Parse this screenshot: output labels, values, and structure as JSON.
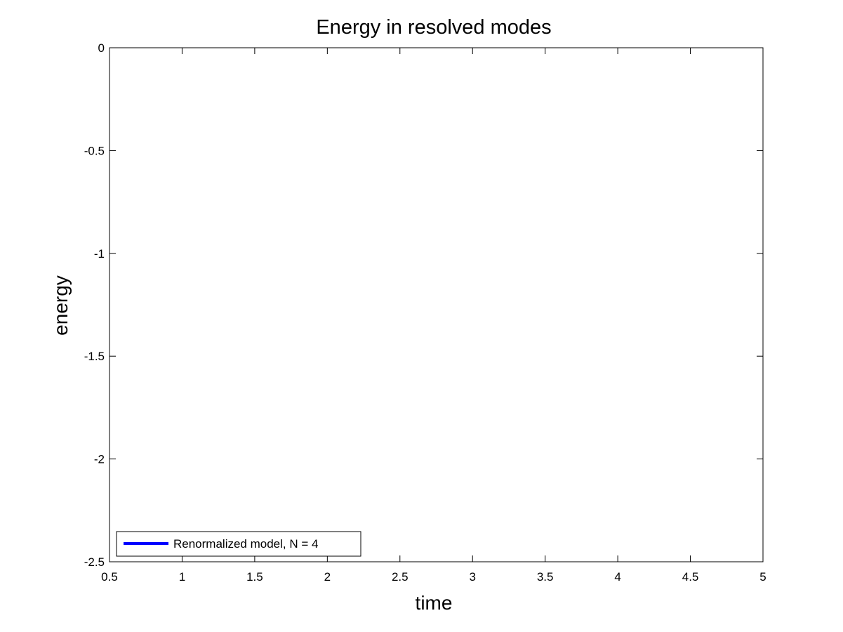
{
  "chart_data": {
    "type": "line",
    "title": "Energy in resolved modes",
    "xlabel": "time",
    "ylabel": "energy",
    "xlim": [
      0.5,
      5
    ],
    "ylim": [
      -2.5,
      0
    ],
    "xticks": [
      0.5,
      1,
      1.5,
      2,
      2.5,
      3,
      3.5,
      4,
      4.5,
      5
    ],
    "xtick_labels": [
      "0.5",
      "1",
      "1.5",
      "2",
      "2.5",
      "3",
      "3.5",
      "4",
      "4.5",
      "5"
    ],
    "yticks": [
      0,
      -0.5,
      -1,
      -1.5,
      -2,
      -2.5
    ],
    "ytick_labels": [
      "0",
      "-0.5",
      "-1",
      "-1.5",
      "-2",
      "-2.5"
    ],
    "grid": false,
    "legend_position": "bottom-left",
    "series": [
      {
        "name": "Renormalized model, N = 4",
        "color": "#0000ff",
        "x": [],
        "y": []
      }
    ]
  }
}
